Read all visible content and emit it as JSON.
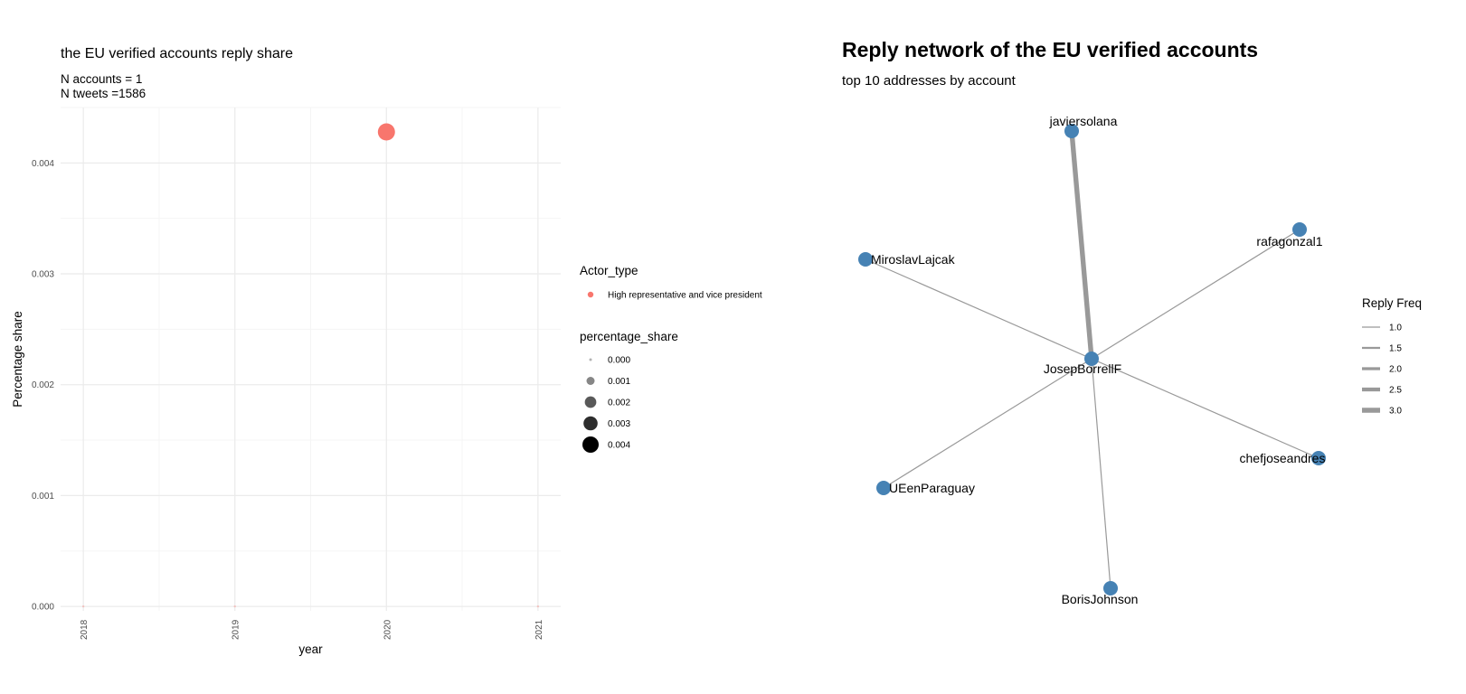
{
  "left_panel": {
    "title": "the EU verified accounts reply share",
    "subtitle_line1": "N accounts = 1",
    "subtitle_line2": "N tweets =1586"
  },
  "right_panel": {
    "title": "Reply network of the EU verified accounts",
    "subtitle": "top 10 addresses by account"
  },
  "colors": {
    "point": "#F8766D",
    "node": "#4682B4",
    "edge": "#999999",
    "grid_major": "#EBEBEB",
    "grid_minor": "#F5F5F5"
  },
  "chart_data": [
    {
      "type": "scatter",
      "xlabel": "year",
      "ylabel": "Percentage share",
      "x_ticks": [
        "2018",
        "2019",
        "2020",
        "2021"
      ],
      "y_ticks": [
        "0.000",
        "0.001",
        "0.002",
        "0.003",
        "0.004"
      ],
      "xlim": [
        2017.85,
        2021.15
      ],
      "ylim": [
        -4e-05,
        0.0045
      ],
      "grid": true,
      "points": [
        {
          "x": 2018,
          "y": 0.0,
          "series": "High representative and vice president"
        },
        {
          "x": 2019,
          "y": 0.0,
          "series": "High representative and vice president"
        },
        {
          "x": 2020,
          "y": 0.00428,
          "series": "High representative and vice president"
        },
        {
          "x": 2021,
          "y": 0.0,
          "series": "High representative and vice president"
        }
      ],
      "legend_color": {
        "title": "Actor_type",
        "entries": [
          {
            "label": "High representative and vice president",
            "color": "#F8766D"
          }
        ]
      },
      "legend_size": {
        "title": "percentage_share",
        "entries": [
          "0.000",
          "0.001",
          "0.002",
          "0.003",
          "0.004"
        ]
      }
    },
    {
      "type": "network",
      "center": "JosepBorrellF",
      "nodes": [
        {
          "id": "JosepBorrellF"
        },
        {
          "id": "javiersolana"
        },
        {
          "id": "rafagonzal1"
        },
        {
          "id": "MiroslavLajcak"
        },
        {
          "id": "chefjoseandres"
        },
        {
          "id": "UEenParaguay"
        },
        {
          "id": "BorisJohnson"
        }
      ],
      "edges": [
        {
          "source": "JosepBorrellF",
          "target": "javiersolana",
          "freq": 3
        },
        {
          "source": "JosepBorrellF",
          "target": "rafagonzal1",
          "freq": 1
        },
        {
          "source": "JosepBorrellF",
          "target": "MiroslavLajcak",
          "freq": 1
        },
        {
          "source": "JosepBorrellF",
          "target": "chefjoseandres",
          "freq": 1
        },
        {
          "source": "JosepBorrellF",
          "target": "UEenParaguay",
          "freq": 1
        },
        {
          "source": "JosepBorrellF",
          "target": "BorisJohnson",
          "freq": 1
        }
      ],
      "legend": {
        "title": "Reply Freq",
        "entries": [
          "1.0",
          "1.5",
          "2.0",
          "2.5",
          "3.0"
        ]
      }
    }
  ]
}
